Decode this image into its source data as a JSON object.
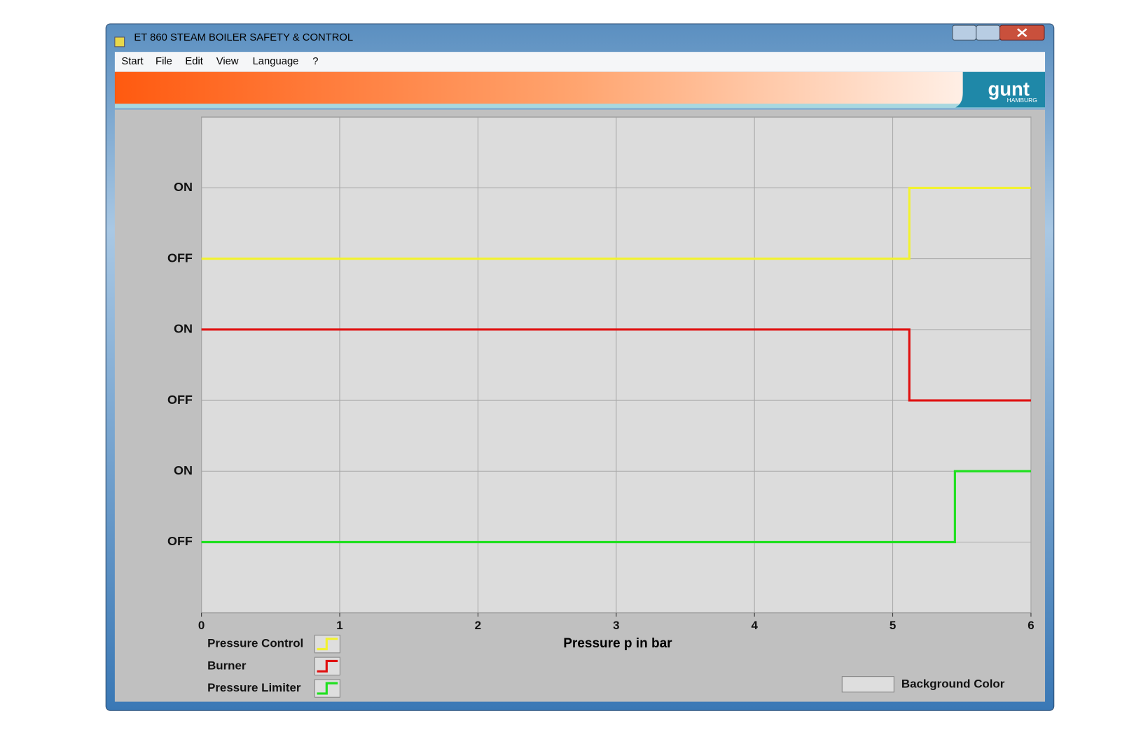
{
  "window": {
    "title": "ET 860 STEAM BOILER SAFETY & CONTROL"
  },
  "menu": [
    "Start",
    "File",
    "Edit",
    "View",
    "Language",
    "?"
  ],
  "logo": {
    "name": "gunt",
    "city": "HAMBURG"
  },
  "background_color_button": "Background Color",
  "chart_data": {
    "type": "line",
    "step": true,
    "xlabel": "Pressure p in bar",
    "xlim": [
      0,
      6
    ],
    "xticks": [
      0,
      1,
      2,
      3,
      4,
      5,
      6
    ],
    "ylim": [
      0,
      7
    ],
    "yticks": [
      {
        "value": 1,
        "label": "OFF"
      },
      {
        "value": 2,
        "label": "ON"
      },
      {
        "value": 3,
        "label": "OFF"
      },
      {
        "value": 4,
        "label": "ON"
      },
      {
        "value": 5,
        "label": "OFF"
      },
      {
        "value": 6,
        "label": "ON"
      }
    ],
    "grid": true,
    "series": [
      {
        "name": "Pressure Control",
        "color": "#f2f230",
        "x": [
          0,
          5.12,
          5.12,
          6
        ],
        "values": [
          5,
          5,
          6,
          6
        ]
      },
      {
        "name": "Burner",
        "color": "#e01010",
        "x": [
          0,
          5.12,
          5.12,
          6
        ],
        "values": [
          4,
          4,
          3,
          3
        ]
      },
      {
        "name": "Pressure Limiter",
        "color": "#20e020",
        "x": [
          0,
          5.45,
          5.45,
          6
        ],
        "values": [
          1,
          1,
          2,
          2
        ]
      }
    ]
  }
}
